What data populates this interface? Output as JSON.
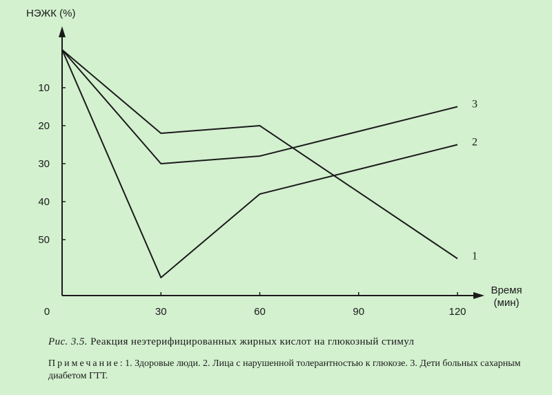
{
  "chart_data": {
    "type": "line",
    "ylabel": "НЭЖК (%)",
    "xlabel": [
      "Время",
      "(мин)"
    ],
    "x": [
      0,
      30,
      60,
      120
    ],
    "xticks": [
      {
        "value": 0,
        "label": "0"
      },
      {
        "value": 30,
        "label": "30"
      },
      {
        "value": 60,
        "label": "60"
      },
      {
        "value": 90,
        "label": "90"
      },
      {
        "value": 120,
        "label": "120"
      }
    ],
    "yticks": [
      {
        "value": -10,
        "label": "10"
      },
      {
        "value": -20,
        "label": "20"
      },
      {
        "value": -30,
        "label": "30"
      },
      {
        "value": -40,
        "label": "40"
      },
      {
        "value": -50,
        "label": "50"
      }
    ],
    "xlim": [
      0,
      120
    ],
    "ylim": [
      -65,
      15
    ],
    "series": [
      {
        "name": "1",
        "values": [
          0,
          -22,
          -20,
          -55
        ]
      },
      {
        "name": "2",
        "values": [
          0,
          -60,
          -38,
          -25
        ]
      },
      {
        "name": "3",
        "values": [
          0,
          -30,
          -28,
          -15
        ]
      }
    ]
  },
  "caption": {
    "figure": "Рис. 3.5.",
    "text": " Реакция неэтерифицированных жирных кислот на глюкозный стимул"
  },
  "note": {
    "heading": "Примечание",
    "text": ": 1. Здоровые люди. 2. Лица с нарушенной толерантностью к глюкозе. 3. Дети больных сахарным диабетом ГТТ."
  },
  "colors": {
    "background": "#d3f0cf",
    "ink": "#1a1a1a"
  }
}
